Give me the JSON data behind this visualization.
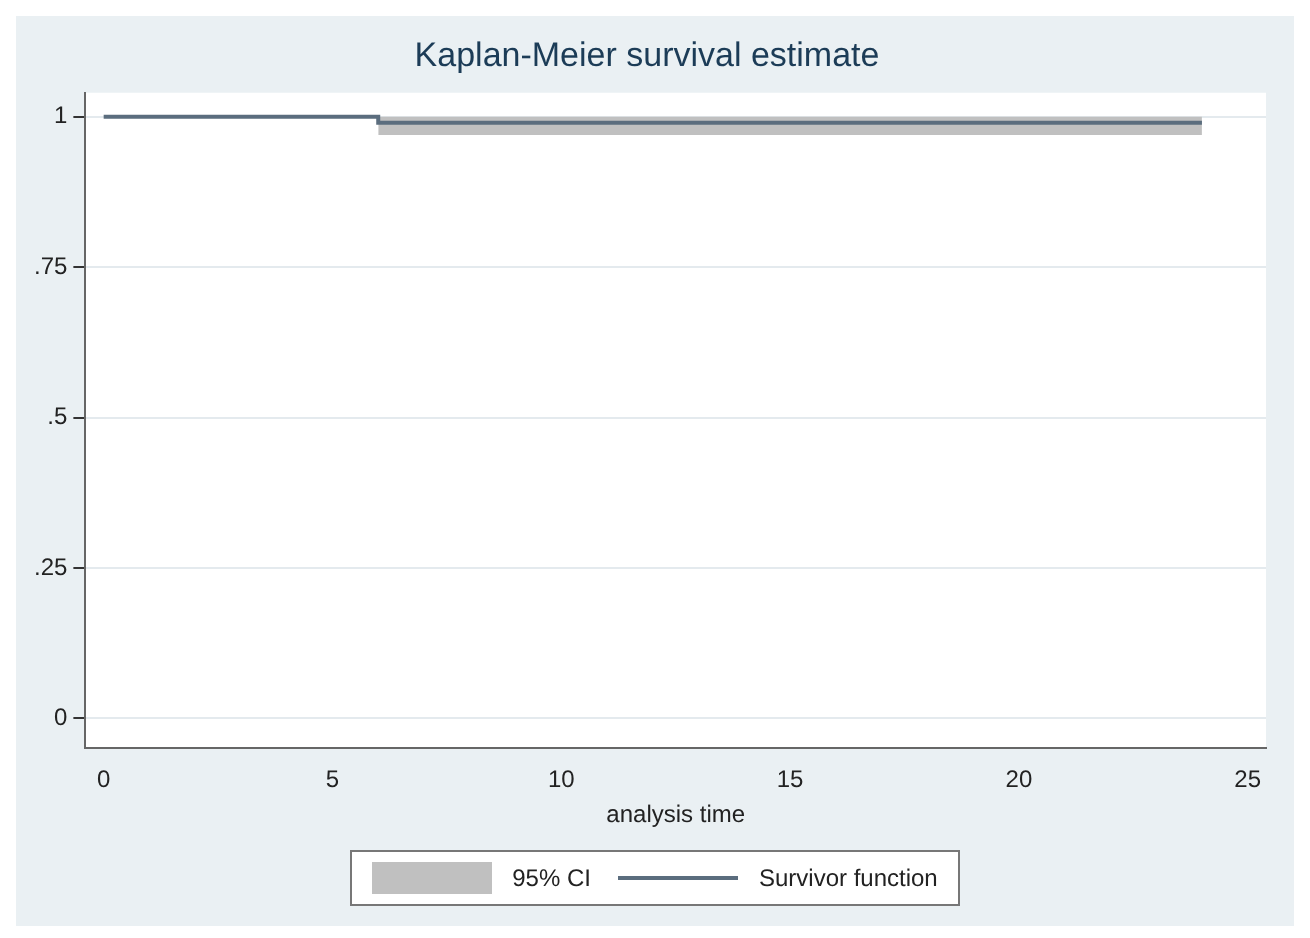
{
  "chart_data": {
    "type": "step",
    "title": "Kaplan-Meier survival estimate",
    "xlabel": "analysis time",
    "x": [
      0,
      6,
      24
    ],
    "series": [
      {
        "name": "Survivor function",
        "color": "#5b6d7e",
        "values": [
          1,
          0.99,
          0.99
        ],
        "lower": [
          null,
          0.97,
          0.97
        ],
        "upper": [
          null,
          1,
          1
        ]
      }
    ],
    "annotations": [
      "95% CI"
    ],
    "xlim": [
      -0.4,
      25.4
    ],
    "xticks": [
      0,
      5,
      10,
      15,
      20,
      25
    ],
    "ylim": [
      -0.05,
      1.04
    ],
    "yticks": [
      {
        "value": 0,
        "label": "0"
      },
      {
        "value": 0.25,
        "label": ".25"
      },
      {
        "value": 0.5,
        "label": ".5"
      },
      {
        "value": 0.75,
        "label": ".75"
      },
      {
        "value": 1,
        "label": "1"
      }
    ],
    "grid": "y",
    "legend": "bottom"
  }
}
